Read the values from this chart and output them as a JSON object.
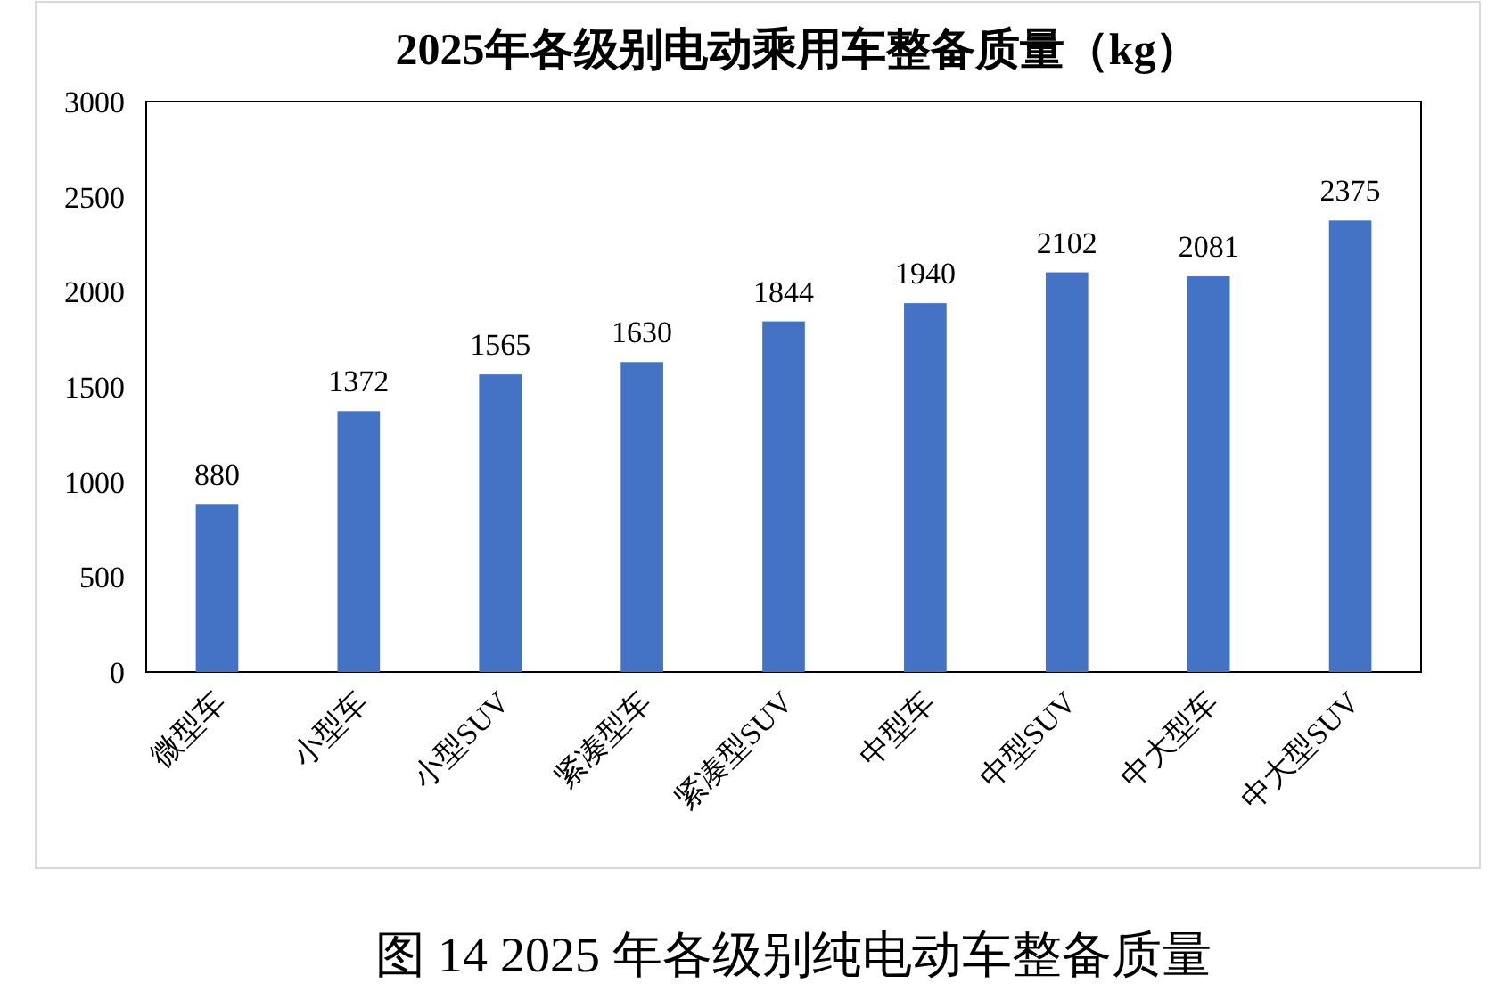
{
  "chart_data": {
    "type": "bar",
    "title": "2025年各级别电动乘用车整备质量（kg）",
    "categories": [
      "微型车",
      "小型车",
      "小型SUV",
      "紧凑型车",
      "紧凑型SUV",
      "中型车",
      "中型SUV",
      "中大型车",
      "中大型SUV"
    ],
    "values": [
      880,
      1372,
      1565,
      1630,
      1844,
      1940,
      2102,
      2081,
      2375
    ],
    "color": "#4472c4",
    "ylim": [
      0,
      3000
    ],
    "yticks": [
      0,
      500,
      1000,
      1500,
      2000,
      2500,
      3000
    ],
    "data_labels": true,
    "annotations": [
      "图 14 2025 年各级别纯电动车整备质量"
    ]
  }
}
